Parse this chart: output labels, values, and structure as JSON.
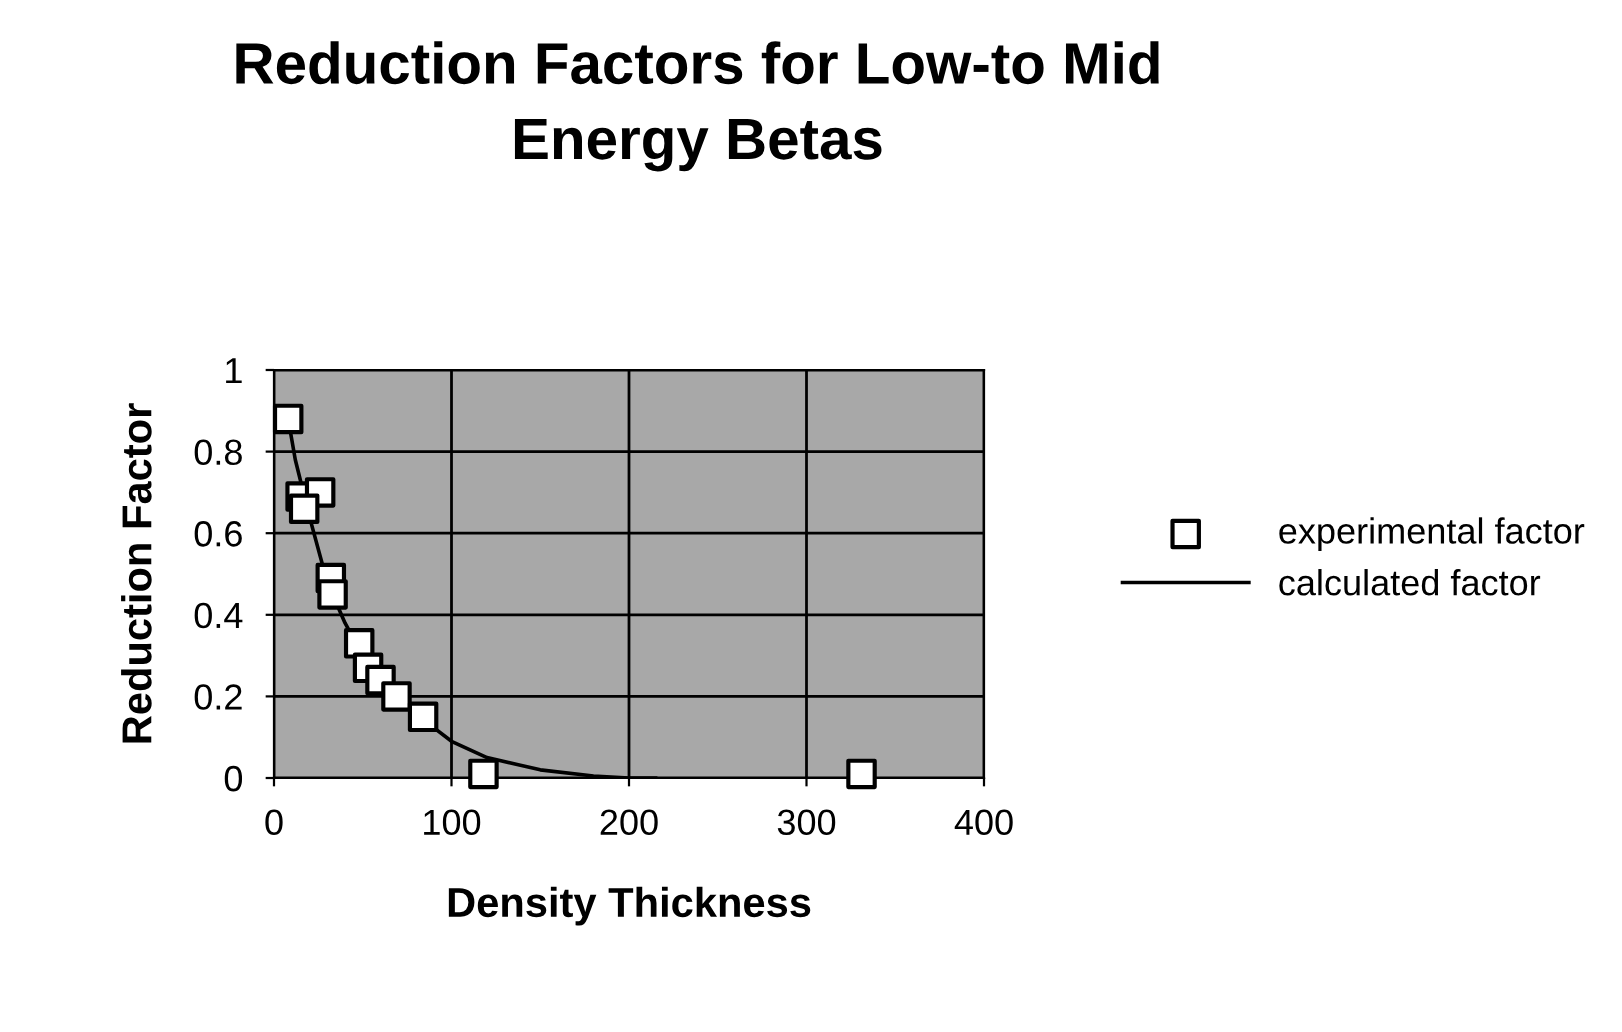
{
  "chart_data": {
    "type": "scatter",
    "title": "Reduction Factors for Low-to Mid\nEnergy Betas",
    "xlabel": "Density Thickness",
    "ylabel": "Reduction Factor",
    "xlim": [
      0,
      400
    ],
    "xticks": [
      0,
      100,
      200,
      300,
      400
    ],
    "ylim": [
      0,
      1
    ],
    "yticks": [
      0,
      {
        "value": 0.2,
        "label": "0.2"
      },
      {
        "value": 0.4,
        "label": "0.4"
      },
      {
        "value": 0.6,
        "label": "0.6"
      },
      {
        "value": 0.8,
        "label": "0.8"
      },
      1
    ],
    "grid": true,
    "legend": "right",
    "series": [
      {
        "name": "experimental factor",
        "marker": "square",
        "color": "#ffffff",
        "x": [
          8,
          15,
          26,
          17,
          32,
          33,
          48,
          53,
          60,
          69,
          84,
          118,
          331
        ],
        "values": [
          0.88,
          0.69,
          0.7,
          0.66,
          0.49,
          0.45,
          0.33,
          0.27,
          0.24,
          0.2,
          0.15,
          0.01,
          0.01
        ]
      },
      {
        "name": "calculated factor",
        "type": "line",
        "marker": "none",
        "line_style": "solid",
        "color": "#000000",
        "x": [
          8,
          12,
          20,
          30,
          40,
          50,
          60,
          70,
          85,
          100,
          120,
          150,
          180,
          200,
          215
        ],
        "values": [
          0.88,
          0.78,
          0.64,
          0.48,
          0.38,
          0.3,
          0.24,
          0.19,
          0.14,
          0.09,
          0.05,
          0.02,
          0.005,
          0,
          0
        ]
      }
    ]
  }
}
